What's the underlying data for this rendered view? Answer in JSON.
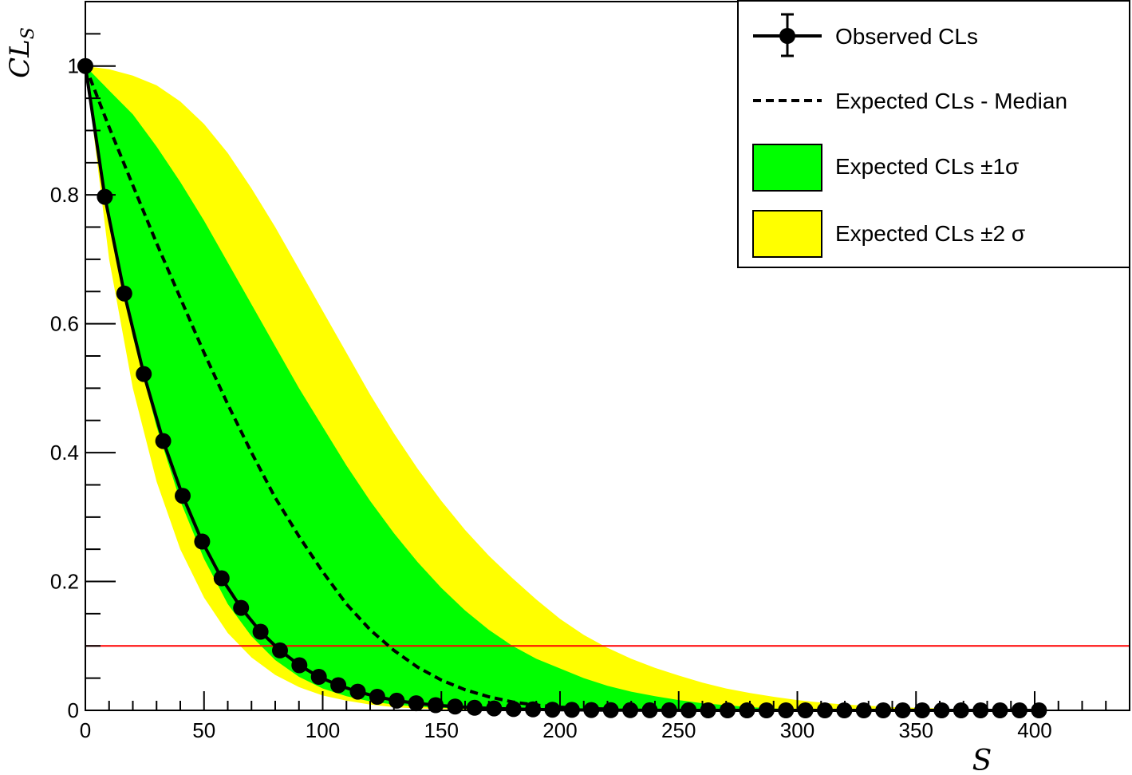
{
  "chart_data": {
    "type": "line",
    "xlabel": "S",
    "ylabel": "CL",
    "ylabel_sub": "S",
    "xlim": [
      0,
      440
    ],
    "ylim": [
      0,
      1.1
    ],
    "x_ticks": [
      0,
      50,
      100,
      150,
      200,
      250,
      300,
      350,
      400
    ],
    "x_tick_labels": [
      "0",
      "50",
      "100",
      "150",
      "200",
      "250",
      "300",
      "350",
      "400"
    ],
    "y_ticks": [
      0,
      0.2,
      0.4,
      0.6,
      0.8,
      1
    ],
    "y_tick_labels": [
      "0",
      "0.2",
      "0.4",
      "0.6",
      "0.8",
      "1"
    ],
    "grid": false,
    "legend_position": "top-right",
    "threshold_line": {
      "y": 0.1,
      "color": "#ff0000"
    },
    "colors": {
      "observed": "#000000",
      "median": "#000000",
      "band_1sigma": "#00ff00",
      "band_2sigma": "#ffff00"
    },
    "observed": {
      "name": "Observed CLs",
      "x": [
        0,
        8.2,
        16.4,
        24.6,
        32.8,
        41,
        49.2,
        57.4,
        65.6,
        73.8,
        82,
        90.2,
        98.4,
        106.6,
        114.8,
        123,
        131.2,
        139.4,
        147.6,
        155.8,
        164,
        172.2,
        180.4,
        188.6,
        196.8,
        205,
        213.2,
        221.4,
        229.6,
        237.8,
        246,
        254.2,
        262.4,
        270.6,
        278.8,
        287,
        295.2,
        303.4,
        311.6,
        319.8,
        328,
        336.2,
        344.4,
        352.6,
        360.8,
        369,
        377.2,
        385.4,
        393.6,
        401.8
      ],
      "y": [
        1,
        0.797,
        0.647,
        0.522,
        0.418,
        0.333,
        0.262,
        0.205,
        0.159,
        0.122,
        0.093,
        0.07,
        0.052,
        0.039,
        0.029,
        0.021,
        0.015,
        0.011,
        0.008,
        0.006,
        0.004,
        0.003,
        0.002,
        0.0015,
        0.001,
        0.0007,
        0.0005,
        0.0003,
        0.0002,
        0.00015,
        0.0001,
        0,
        0,
        0,
        0,
        0,
        0,
        0,
        0,
        0,
        0,
        0,
        0,
        0,
        0,
        0,
        0,
        0,
        0,
        0
      ]
    },
    "median": {
      "name": "Expected CLs - Median",
      "x": [
        0,
        10,
        20,
        30,
        40,
        50,
        60,
        70,
        80,
        90,
        100,
        110,
        120,
        130,
        140,
        150,
        160,
        170,
        180,
        190,
        200,
        210,
        220
      ],
      "y": [
        1,
        0.905,
        0.815,
        0.725,
        0.64,
        0.555,
        0.475,
        0.4,
        0.33,
        0.27,
        0.215,
        0.165,
        0.125,
        0.093,
        0.067,
        0.047,
        0.032,
        0.021,
        0.013,
        0.008,
        0.005,
        0.003,
        0.002
      ]
    },
    "band_1sigma": {
      "name": "Expected CLs ±1σ",
      "x": [
        0,
        10,
        20,
        30,
        40,
        50,
        60,
        70,
        80,
        90,
        100,
        110,
        120,
        130,
        140,
        150,
        160,
        170,
        180,
        190,
        200,
        210,
        220,
        230,
        240,
        250,
        260,
        270,
        280,
        290,
        300,
        310,
        320
      ],
      "lower": [
        1,
        0.76,
        0.58,
        0.44,
        0.325,
        0.235,
        0.165,
        0.115,
        0.078,
        0.052,
        0.034,
        0.022,
        0.014,
        0.009,
        0.006,
        0.004,
        0.002,
        0.0015,
        0.001,
        0,
        0,
        0,
        0,
        0,
        0,
        0,
        0,
        0,
        0,
        0,
        0,
        0,
        0
      ],
      "upper": [
        1,
        0.962,
        0.925,
        0.875,
        0.82,
        0.76,
        0.695,
        0.63,
        0.565,
        0.5,
        0.44,
        0.38,
        0.325,
        0.275,
        0.23,
        0.19,
        0.155,
        0.125,
        0.1,
        0.08,
        0.065,
        0.05,
        0.038,
        0.029,
        0.022,
        0.016,
        0.011,
        0.008,
        0.005,
        0.003,
        0.002,
        0.001,
        0
      ]
    },
    "band_2sigma": {
      "name": "Expected CLs ±2 σ",
      "x": [
        0,
        10,
        20,
        30,
        40,
        50,
        60,
        70,
        80,
        90,
        100,
        110,
        120,
        130,
        140,
        150,
        160,
        170,
        180,
        190,
        200,
        210,
        220,
        230,
        240,
        250,
        260,
        270,
        280,
        290,
        300,
        310,
        320,
        330,
        340,
        350,
        360,
        370,
        380,
        390
      ],
      "lower": [
        1,
        0.7,
        0.5,
        0.355,
        0.25,
        0.175,
        0.12,
        0.082,
        0.055,
        0.036,
        0.023,
        0.015,
        0.009,
        0.005,
        0.003,
        0.002,
        0.001,
        0,
        0,
        0,
        0,
        0,
        0,
        0,
        0,
        0,
        0,
        0,
        0,
        0,
        0,
        0,
        0,
        0,
        0,
        0,
        0,
        0,
        0,
        0
      ],
      "upper": [
        1,
        0.995,
        0.985,
        0.97,
        0.945,
        0.91,
        0.865,
        0.81,
        0.75,
        0.685,
        0.62,
        0.555,
        0.49,
        0.43,
        0.375,
        0.325,
        0.28,
        0.24,
        0.205,
        0.172,
        0.142,
        0.117,
        0.097,
        0.08,
        0.066,
        0.054,
        0.043,
        0.034,
        0.027,
        0.021,
        0.016,
        0.012,
        0.009,
        0.007,
        0.005,
        0.004,
        0.003,
        0.002,
        0.001,
        0
      ]
    }
  },
  "legend": {
    "observed_label": "Observed CLs",
    "median_label": "Expected CLs - Median",
    "band1_label": "Expected CLs ±1σ",
    "band2_label": "Expected CLs ±2 σ"
  }
}
